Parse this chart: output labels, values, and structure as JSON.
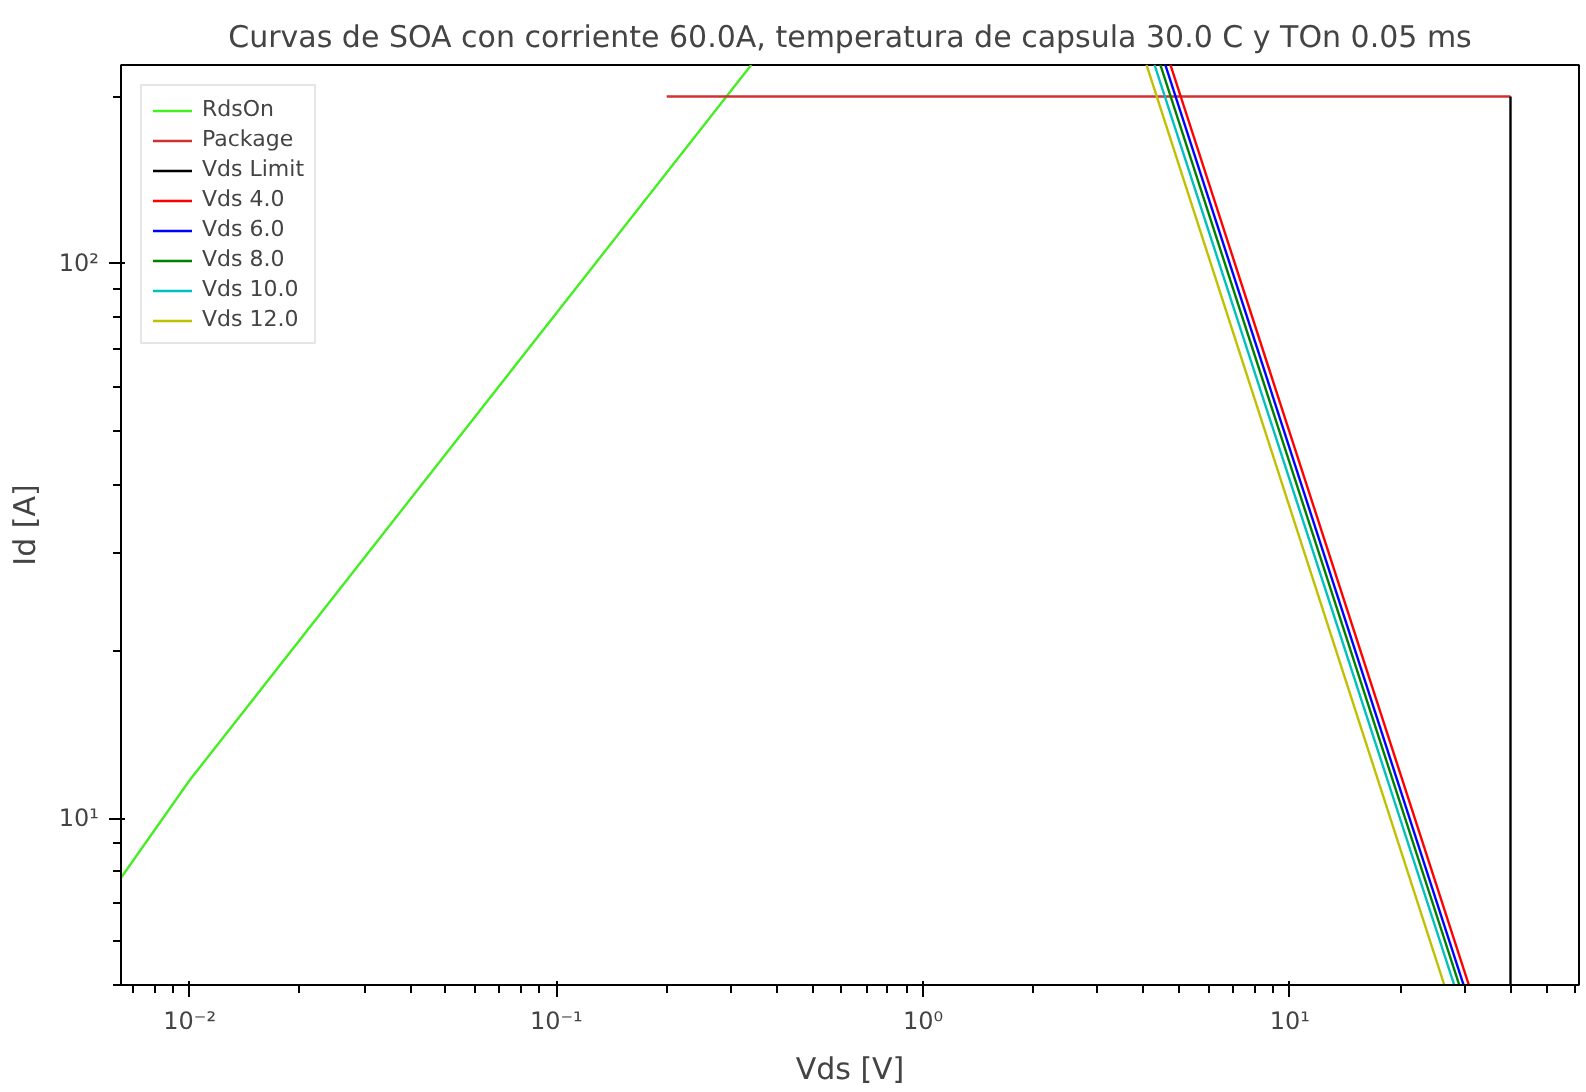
{
  "chart_data": {
    "type": "line",
    "title": "Curvas de SOA con corriente 60.0A, temperatura de capsula 30.0 C y TOn 0.05 ms",
    "xlabel": "Vds [V]",
    "ylabel": "Id [A]",
    "log": "xy",
    "grid": false,
    "legend": "top left",
    "xlim": [
      0.0065,
      61.5
    ],
    "ylim": [
      5,
      228
    ],
    "xticks": [
      {
        "value": 0.01,
        "label": "10⁻²"
      },
      {
        "value": 0.1,
        "label": "10⁻¹"
      },
      {
        "value": 1,
        "label": "10⁰"
      },
      {
        "value": 10,
        "label": "10¹"
      }
    ],
    "yticks": [
      {
        "value": 10,
        "label": "10¹"
      },
      {
        "value": 100,
        "label": "10²"
      }
    ],
    "series": [
      {
        "name": "RdsOn",
        "color": "#44ee22",
        "x": [
          0.0065,
          0.01,
          0.34
        ],
        "values": [
          7.8,
          11.7,
          228
        ]
      },
      {
        "name": "Package",
        "color": "#d03030",
        "x": [
          0.2,
          40
        ],
        "values": [
          200,
          200
        ]
      },
      {
        "name": "Vds Limit",
        "color": "#000000",
        "x": [
          40,
          40
        ],
        "values": [
          200,
          5
        ]
      },
      {
        "name": "Vds 4.0",
        "color": "#ff0000",
        "x": [
          4.73,
          30.8
        ],
        "values": [
          228,
          5
        ]
      },
      {
        "name": "Vds 6.0",
        "color": "#0000ff",
        "x": [
          4.58,
          29.8
        ],
        "values": [
          228,
          5
        ]
      },
      {
        "name": "Vds 8.0",
        "color": "#008000",
        "x": [
          4.44,
          29.0
        ],
        "values": [
          228,
          5
        ]
      },
      {
        "name": "Vds 10.0",
        "color": "#00c0c0",
        "x": [
          4.28,
          28.1
        ],
        "values": [
          228,
          5
        ]
      },
      {
        "name": "Vds 12.0",
        "color": "#c0c000",
        "x": [
          4.07,
          26.4
        ],
        "values": [
          228,
          5
        ]
      }
    ]
  }
}
